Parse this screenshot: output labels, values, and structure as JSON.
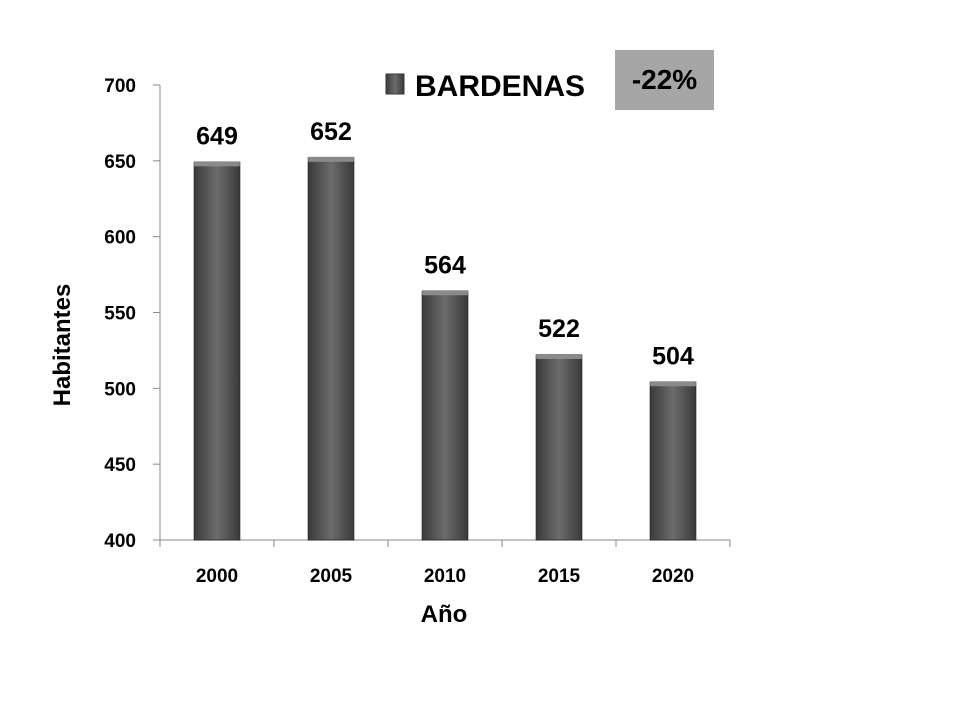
{
  "badge": {
    "text": "-22%"
  },
  "chart_data": {
    "type": "bar",
    "categories": [
      "2000",
      "2005",
      "2010",
      "2015",
      "2020"
    ],
    "series": [
      {
        "name": "BARDENAS",
        "values": [
          649,
          652,
          564,
          522,
          504
        ]
      }
    ],
    "data_labels": [
      "649",
      "652",
      "564",
      "522",
      "504"
    ],
    "xlabel": "Año",
    "ylabel": "Habitantes",
    "ylim": [
      400,
      700
    ],
    "yticks": [
      400,
      450,
      500,
      550,
      600,
      650,
      700
    ],
    "grid": false,
    "legend_position": "top",
    "colors": {
      "bar": "#5f5f5f",
      "bar_light": "#7a7a7a",
      "bar_dark": "#3c3c3c",
      "axis": "#888888"
    }
  }
}
